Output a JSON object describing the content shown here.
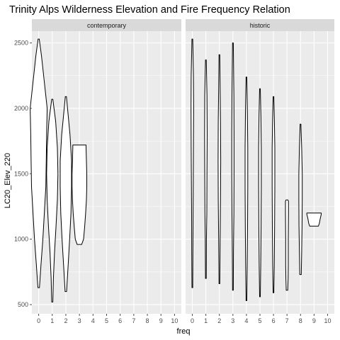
{
  "chart_data": {
    "type": "violin",
    "title": "Trinity Alps Wilderness Elevation and Fire Frequency Relation",
    "xlabel": "freq",
    "ylabel": "LC20_Elev_220",
    "xlim": [
      -0.5,
      10.5
    ],
    "ylim": [
      430,
      2590
    ],
    "x_ticks": [
      0,
      1,
      2,
      3,
      4,
      5,
      6,
      7,
      8,
      9,
      10
    ],
    "y_ticks": [
      500,
      1000,
      1500,
      2000,
      2500
    ],
    "grid": true,
    "facets": [
      {
        "name": "contemporary",
        "violins": [
          {
            "x": 0,
            "profile": [
              [
                630,
                0.04
              ],
              [
                800,
                0.12
              ],
              [
                1000,
                0.22
              ],
              [
                1200,
                0.3
              ],
              [
                1400,
                0.38
              ],
              [
                1600,
                0.4
              ],
              [
                1800,
                0.42
              ],
              [
                2000,
                0.45
              ],
              [
                2200,
                0.3
              ],
              [
                2400,
                0.15
              ],
              [
                2530,
                0.03
              ]
            ]
          },
          {
            "x": 1,
            "profile": [
              [
                520,
                0.03
              ],
              [
                700,
                0.06
              ],
              [
                900,
                0.12
              ],
              [
                1100,
                0.2
              ],
              [
                1300,
                0.27
              ],
              [
                1500,
                0.3
              ],
              [
                1700,
                0.27
              ],
              [
                1900,
                0.18
              ],
              [
                2070,
                0.03
              ]
            ]
          },
          {
            "x": 2,
            "profile": [
              [
                600,
                0.04
              ],
              [
                800,
                0.12
              ],
              [
                1000,
                0.2
              ],
              [
                1200,
                0.27
              ],
              [
                1400,
                0.3
              ],
              [
                1600,
                0.3
              ],
              [
                1800,
                0.22
              ],
              [
                1950,
                0.12
              ],
              [
                2090,
                0.03
              ]
            ]
          },
          {
            "x": 3,
            "profile": [
              [
                960,
                0.12
              ],
              [
                1000,
                0.22
              ],
              [
                1100,
                0.28
              ],
              [
                1200,
                0.33
              ],
              [
                1300,
                0.37
              ],
              [
                1400,
                0.39
              ],
              [
                1500,
                0.39
              ],
              [
                1600,
                0.37
              ],
              [
                1700,
                0.35
              ],
              [
                1720,
                0.35
              ]
            ]
          }
        ]
      },
      {
        "name": "historic",
        "violins": [
          {
            "x": 0,
            "profile": [
              [
                630,
                0.02
              ],
              [
                900,
                0.03
              ],
              [
                1200,
                0.04
              ],
              [
                1450,
                0.05
              ],
              [
                1700,
                0.06
              ],
              [
                2000,
                0.07
              ],
              [
                2250,
                0.06
              ],
              [
                2530,
                0.02
              ]
            ]
          },
          {
            "x": 1,
            "profile": [
              [
                700,
                0.02
              ],
              [
                1000,
                0.03
              ],
              [
                1200,
                0.05
              ],
              [
                1500,
                0.06
              ],
              [
                1800,
                0.07
              ],
              [
                2100,
                0.06
              ],
              [
                2370,
                0.02
              ]
            ]
          },
          {
            "x": 2,
            "profile": [
              [
                660,
                0.02
              ],
              [
                1000,
                0.04
              ],
              [
                1300,
                0.06
              ],
              [
                1600,
                0.07
              ],
              [
                1900,
                0.06
              ],
              [
                2150,
                0.04
              ],
              [
                2410,
                0.02
              ]
            ]
          },
          {
            "x": 3,
            "profile": [
              [
                610,
                0.02
              ],
              [
                900,
                0.03
              ],
              [
                1200,
                0.05
              ],
              [
                1500,
                0.06
              ],
              [
                1800,
                0.06
              ],
              [
                2100,
                0.05
              ],
              [
                2500,
                0.02
              ]
            ]
          },
          {
            "x": 4,
            "profile": [
              [
                530,
                0.02
              ],
              [
                800,
                0.04
              ],
              [
                1100,
                0.06
              ],
              [
                1400,
                0.07
              ],
              [
                1700,
                0.07
              ],
              [
                2000,
                0.05
              ],
              [
                2240,
                0.02
              ]
            ]
          },
          {
            "x": 5,
            "profile": [
              [
                560,
                0.02
              ],
              [
                800,
                0.04
              ],
              [
                1100,
                0.06
              ],
              [
                1400,
                0.07
              ],
              [
                1700,
                0.07
              ],
              [
                1950,
                0.05
              ],
              [
                2150,
                0.02
              ]
            ]
          },
          {
            "x": 6,
            "profile": [
              [
                590,
                0.02
              ],
              [
                800,
                0.04
              ],
              [
                1100,
                0.06
              ],
              [
                1400,
                0.07
              ],
              [
                1700,
                0.07
              ],
              [
                1900,
                0.05
              ],
              [
                2090,
                0.02
              ]
            ]
          },
          {
            "x": 7,
            "profile": [
              [
                610,
                0.04
              ],
              [
                700,
                0.06
              ],
              [
                800,
                0.07
              ],
              [
                1000,
                0.07
              ],
              [
                1200,
                0.08
              ],
              [
                1290,
                0.08
              ],
              [
                1300,
                0.05
              ]
            ]
          },
          {
            "x": 8,
            "profile": [
              [
                730,
                0.04
              ],
              [
                900,
                0.06
              ],
              [
                1100,
                0.08
              ],
              [
                1300,
                0.09
              ],
              [
                1500,
                0.09
              ],
              [
                1700,
                0.06
              ],
              [
                1880,
                0.02
              ]
            ]
          },
          {
            "x": 9,
            "profile": [
              [
                1100,
                0.23
              ],
              [
                1120,
                0.28
              ],
              [
                1160,
                0.33
              ],
              [
                1190,
                0.38
              ],
              [
                1200,
                0.38
              ]
            ]
          }
        ]
      }
    ]
  },
  "colors": {
    "panel_bg": "#ebebeb",
    "grid_major": "#ffffff",
    "strip_bg": "#d9d9d9",
    "violin_fill": "#ffffff",
    "violin_stroke": "#000000",
    "tick_color": "#4d4d4d"
  }
}
